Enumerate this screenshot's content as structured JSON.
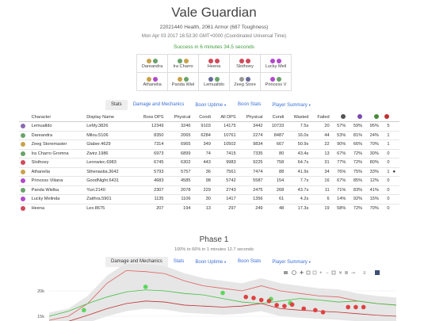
{
  "header": {
    "title": "Vale Guardian",
    "health_line": "22021440 Health, 2061 Armor (687 Toughness)",
    "date_line": "Mon Apr 03 2017 16:53:30 GMT+0000 (Coordinated Universal Time)",
    "result_line": "Success in 6 minutes 34.5 seconds"
  },
  "squad": {
    "rows": [
      [
        {
          "name": "Dareandra",
          "icon1": "#c9a24a",
          "icon2": "#6aa36a"
        },
        {
          "name": "Ira Charro",
          "icon1": "#6aa36a",
          "icon2": "#c9a24a"
        },
        {
          "name": "Heena",
          "icon1": "#d04a5a",
          "icon2": "#d04a5a"
        },
        {
          "name": "Slothoey",
          "icon1": "#d04a5a",
          "icon2": "#d04a5a"
        },
        {
          "name": "Lucky Meli",
          "icon1": "#b04ac9",
          "icon2": "#b04ac9"
        }
      ],
      [
        {
          "name": "Athanelia",
          "icon1": "#c9a24a",
          "icon2": "#b04ac9"
        },
        {
          "name": "Panda Wiel",
          "icon1": "#c9a24a",
          "icon2": "#6aa36a"
        },
        {
          "name": "Lemualldo",
          "icon1": "#6a6a9a",
          "icon2": "#6aa36a"
        },
        {
          "name": "Zeeg Store",
          "icon1": "#9a9a9a",
          "icon2": "#6a6a9a"
        },
        {
          "name": "Princess V",
          "icon1": "#b04ac9",
          "icon2": "#6aa36a"
        }
      ]
    ]
  },
  "nav_main": {
    "tabs": [
      {
        "label": "Stats",
        "caret": "",
        "active": true
      },
      {
        "label": "Damage and Mechanics",
        "caret": "",
        "active": false
      },
      {
        "label": "Boon Uptime",
        "caret": "▼",
        "active": false
      },
      {
        "label": "Boon Stats",
        "caret": "",
        "active": false
      },
      {
        "label": "Player Summary",
        "caret": "▼",
        "active": false
      }
    ]
  },
  "stats_table": {
    "headers": [
      "",
      "Character",
      "Display Name",
      "Boss DPS",
      "Physical",
      "Condi",
      "All DPS",
      "Physical",
      "Condi",
      "Wasted",
      "Failed",
      "",
      "",
      "",
      ""
    ],
    "header_icons": [
      {
        "name": "boon-might-icon",
        "color": "#555"
      },
      {
        "name": "boon-fury-icon",
        "color": "#7a4ab0"
      },
      {
        "name": "boon-quickness-icon",
        "color": "#4a8a3a"
      },
      {
        "name": "boon-alacrity-icon",
        "color": "#c03030"
      }
    ],
    "rows": [
      {
        "icon": "#8a6ab0",
        "character": "Lemualldo",
        "display": "LeMy.3826",
        "boss_dps": "12349",
        "physical": "3246",
        "condi": "9103",
        "all_dps": "14175",
        "all_physical": "3442",
        "all_condi": "10733",
        "wasted": "7.5s",
        "failed": "20",
        "p1": "57%",
        "p2": "59%",
        "p3": "95%",
        "p4": "5",
        "extra": ""
      },
      {
        "icon": "#6aa36a",
        "character": "Dareandra",
        "display": "Milou.5106",
        "boss_dps": "8350",
        "physical": "2065",
        "condi": "6284",
        "all_dps": "10761",
        "all_physical": "2274",
        "all_condi": "8487",
        "wasted": "16.0s",
        "failed": "44",
        "p1": "53%",
        "p2": "81%",
        "p3": "24%",
        "p4": "1",
        "extra": ""
      },
      {
        "icon": "#c9a24a",
        "character": "Zeeg Storemaster",
        "display": "Glaber.4629",
        "boss_dps": "7314",
        "physical": "6965",
        "condi": "349",
        "all_dps": "10502",
        "all_physical": "9834",
        "all_condi": "667",
        "wasted": "50.9s",
        "failed": "22",
        "p1": "90%",
        "p2": "66%",
        "p3": "70%",
        "p4": "1",
        "extra": ""
      },
      {
        "icon": "#6aa36a",
        "character": "Ira Charro Gromna",
        "display": "Zwirz.1986",
        "boss_dps": "6973",
        "physical": "6899",
        "condi": "74",
        "all_dps": "7415",
        "all_physical": "7335",
        "all_condi": "80",
        "wasted": "43.4s",
        "failed": "13",
        "p1": "67%",
        "p2": "72%",
        "p3": "30%",
        "p4": "0",
        "extra": ""
      },
      {
        "icon": "#d04a5a",
        "character": "Slothoey",
        "display": "Lennwiec.6983",
        "boss_dps": "6745",
        "physical": "6302",
        "condi": "443",
        "all_dps": "9983",
        "all_physical": "9225",
        "all_condi": "758",
        "wasted": "64.7s",
        "failed": "31",
        "p1": "77%",
        "p2": "72%",
        "p3": "80%",
        "p4": "0",
        "extra": ""
      },
      {
        "icon": "#c9a24a",
        "character": "Athanelia",
        "display": "Sthenastia.3642",
        "boss_dps": "5793",
        "physical": "5757",
        "condi": "36",
        "all_dps": "7561",
        "all_physical": "7474",
        "all_condi": "88",
        "wasted": "41.9s",
        "failed": "34",
        "p1": "76%",
        "p2": "75%",
        "p3": "33%",
        "p4": "1",
        "extra": "●"
      },
      {
        "icon": "#b04ac9",
        "character": "Princess Viliana",
        "display": "GoodNight.6431",
        "boss_dps": "4683",
        "physical": "4585",
        "condi": "98",
        "all_dps": "5742",
        "all_physical": "5587",
        "all_condi": "154",
        "wasted": "7.7s",
        "failed": "16",
        "p1": "67%",
        "p2": "85%",
        "p3": "12%",
        "p4": "0",
        "extra": ""
      },
      {
        "icon": "#6aa36a",
        "character": "Panda Wielka",
        "display": "Yuri.2140",
        "boss_dps": "2307",
        "physical": "2078",
        "condi": "229",
        "all_dps": "2743",
        "all_physical": "2475",
        "all_condi": "268",
        "wasted": "43.7s",
        "failed": "11",
        "p1": "71%",
        "p2": "83%",
        "p3": "41%",
        "p4": "0",
        "extra": ""
      },
      {
        "icon": "#b04ac9",
        "character": "Lucky Melinda",
        "display": "Zaithra.5901",
        "boss_dps": "1135",
        "physical": "1106",
        "condi": "30",
        "all_dps": "1417",
        "all_physical": "1356",
        "all_condi": "61",
        "wasted": "4.2s",
        "failed": "6",
        "p1": "14%",
        "p2": "92%",
        "p3": "15%",
        "p4": "0",
        "extra": ""
      },
      {
        "icon": "#d04a5a",
        "character": "Heena",
        "display": "Lex.8675",
        "boss_dps": "207",
        "physical": "194",
        "condi": "13",
        "all_dps": "297",
        "all_physical": "249",
        "all_condi": "48",
        "wasted": "17.3s",
        "failed": "19",
        "p1": "58%",
        "p2": "72%",
        "p3": "70%",
        "p4": "0",
        "extra": ""
      }
    ]
  },
  "phase": {
    "title": "Phase 1",
    "subtitle": "100% to 66% in 1 minutes 12.7 seconds"
  },
  "nav_phase": {
    "tabs": [
      {
        "label": "Damage and Mechanics",
        "caret": "",
        "active": true
      },
      {
        "label": "Stats",
        "caret": "",
        "active": false
      },
      {
        "label": "Boon Uptime",
        "caret": "▼",
        "active": false
      },
      {
        "label": "Boon Stats",
        "caret": "",
        "active": false
      },
      {
        "label": "Player Summary",
        "caret": "▼",
        "active": false
      }
    ]
  },
  "chart_data": {
    "type": "line",
    "y_ticks": [
      "20k",
      "15k"
    ],
    "series": [
      {
        "color": "#e06060",
        "values": [
          14.2,
          15.0,
          17.5,
          21.5,
          24.0,
          23.8,
          23.4,
          22.0,
          21.0,
          20.5,
          20.0,
          21.0,
          20.0,
          19.5,
          19.0,
          18.8,
          18.0,
          17.5,
          17.2
        ]
      },
      {
        "color": "#40c040",
        "values": [
          15.0,
          16.0,
          17.5,
          18.8,
          19.8,
          20.2,
          20.0,
          19.5,
          19.2,
          18.5,
          17.8,
          17.5,
          18.0,
          18.5,
          18.2,
          17.8,
          18.0,
          17.5,
          17.2
        ]
      },
      {
        "color": "#c03030",
        "values": [
          13.5,
          14.0,
          15.2,
          16.5,
          17.5,
          18.0,
          17.8,
          17.2,
          17.0,
          16.8,
          17.0,
          17.5,
          16.5,
          16.2,
          16.0,
          15.8,
          15.5,
          15.2,
          15.0
        ]
      }
    ],
    "red_markers": [
      [
        10.2,
        18.8
      ],
      [
        10.6,
        18.6
      ],
      [
        11.0,
        18.2
      ],
      [
        11.4,
        18.0
      ],
      [
        11.8,
        17.2
      ],
      [
        12.2,
        17.0
      ],
      [
        12.6,
        17.3
      ],
      [
        13.2,
        16.5
      ],
      [
        15.5,
        16.8
      ],
      [
        15.9,
        16.8
      ],
      [
        16.3,
        16.8
      ],
      [
        13.8,
        16.2
      ],
      [
        14.2,
        15.8
      ]
    ],
    "green_markers": [
      [
        1.8,
        16.2
      ],
      [
        5.0,
        20.8
      ],
      [
        9.0,
        19.6
      ],
      [
        11.5,
        18.4
      ],
      [
        12.5,
        17.6
      ]
    ]
  }
}
